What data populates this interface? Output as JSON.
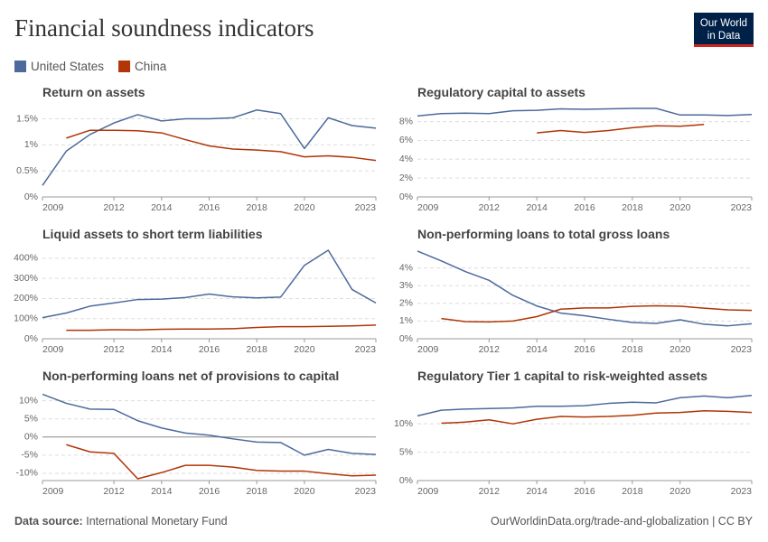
{
  "header": {
    "title": "Financial soundness indicators"
  },
  "logo": {
    "lines": [
      "Our World",
      "in Data"
    ]
  },
  "footer": {
    "source_label": "Data source:",
    "source": "International Monetary Fund",
    "credit": "OurWorldinData.org/trade-and-globalization | CC BY"
  },
  "chart_data": [
    {
      "type": "line",
      "title": "Return on assets",
      "x": [
        2009,
        2010,
        2011,
        2012,
        2013,
        2014,
        2015,
        2016,
        2017,
        2018,
        2019,
        2020,
        2021,
        2022,
        2023
      ],
      "xlim": [
        2009,
        2023
      ],
      "xticks": [
        2009,
        2012,
        2014,
        2016,
        2018,
        2020,
        2023
      ],
      "ylim": [
        0,
        1.7
      ],
      "yticks": [
        {
          "value": 0,
          "label": "0%"
        },
        {
          "value": 0.5,
          "label": "0.5%"
        },
        {
          "value": 1,
          "label": "1%"
        },
        {
          "value": 1.5,
          "label": "1.5%"
        }
      ],
      "grid": true,
      "series": [
        {
          "name": "United States",
          "color": "#4c6a9c",
          "values": [
            0.22,
            0.88,
            1.2,
            1.42,
            1.58,
            1.46,
            1.5,
            1.5,
            1.52,
            1.67,
            1.6,
            0.93,
            1.52,
            1.37,
            1.32
          ]
        },
        {
          "name": "China",
          "color": "#b13507",
          "values": [
            null,
            1.13,
            1.28,
            1.28,
            1.27,
            1.23,
            1.1,
            0.98,
            0.92,
            0.9,
            0.87,
            0.77,
            0.79,
            0.76,
            0.7
          ]
        }
      ]
    },
    {
      "type": "line",
      "title": "Regulatory capital to assets",
      "x": [
        2009,
        2010,
        2011,
        2012,
        2013,
        2014,
        2015,
        2016,
        2017,
        2018,
        2019,
        2020,
        2021,
        2022,
        2023
      ],
      "xlim": [
        2009,
        2023
      ],
      "xticks": [
        2009,
        2012,
        2014,
        2016,
        2018,
        2020,
        2023
      ],
      "ylim": [
        0,
        9.4
      ],
      "yticks": [
        {
          "value": 0,
          "label": "0%"
        },
        {
          "value": 2,
          "label": "2%"
        },
        {
          "value": 4,
          "label": "4%"
        },
        {
          "value": 6,
          "label": "6%"
        },
        {
          "value": 8,
          "label": "8%"
        }
      ],
      "grid": true,
      "series": [
        {
          "name": "United States",
          "color": "#4c6a9c",
          "values": [
            8.6,
            8.85,
            8.9,
            8.85,
            9.15,
            9.2,
            9.35,
            9.3,
            9.35,
            9.4,
            9.4,
            8.7,
            8.7,
            8.65,
            8.75
          ]
        },
        {
          "name": "China",
          "color": "#b13507",
          "values": [
            null,
            null,
            null,
            null,
            null,
            6.8,
            7.05,
            6.85,
            7.05,
            7.35,
            7.55,
            7.5,
            7.7,
            null,
            null
          ]
        }
      ]
    },
    {
      "type": "line",
      "title": "Liquid assets to short term liabilities",
      "x": [
        2009,
        2010,
        2011,
        2012,
        2013,
        2014,
        2015,
        2016,
        2017,
        2018,
        2019,
        2020,
        2021,
        2022,
        2023
      ],
      "xlim": [
        2009,
        2023
      ],
      "xticks": [
        2009,
        2012,
        2014,
        2016,
        2018,
        2020,
        2023
      ],
      "ylim": [
        0,
        440
      ],
      "yticks": [
        {
          "value": 0,
          "label": "0%"
        },
        {
          "value": 100,
          "label": "100%"
        },
        {
          "value": 200,
          "label": "200%"
        },
        {
          "value": 300,
          "label": "300%"
        },
        {
          "value": 400,
          "label": "400%"
        }
      ],
      "grid": true,
      "series": [
        {
          "name": "United States",
          "color": "#4c6a9c",
          "values": [
            105,
            128,
            162,
            178,
            195,
            197,
            205,
            222,
            208,
            203,
            207,
            365,
            440,
            245,
            178
          ]
        },
        {
          "name": "China",
          "color": "#b13507",
          "values": [
            null,
            42,
            42,
            45,
            44,
            47,
            48,
            48,
            50,
            56,
            60,
            60,
            62,
            64,
            68
          ]
        }
      ]
    },
    {
      "type": "line",
      "title": "Non-performing loans to total gross loans",
      "x": [
        2009,
        2010,
        2011,
        2012,
        2013,
        2014,
        2015,
        2016,
        2017,
        2018,
        2019,
        2020,
        2021,
        2022,
        2023
      ],
      "xlim": [
        2009,
        2023
      ],
      "xticks": [
        2009,
        2012,
        2014,
        2016,
        2018,
        2020,
        2023
      ],
      "ylim": [
        0,
        5
      ],
      "yticks": [
        {
          "value": 0,
          "label": "0%"
        },
        {
          "value": 1,
          "label": "1%"
        },
        {
          "value": 2,
          "label": "2%"
        },
        {
          "value": 3,
          "label": "3%"
        },
        {
          "value": 4,
          "label": "4%"
        }
      ],
      "grid": true,
      "series": [
        {
          "name": "United States",
          "color": "#4c6a9c",
          "values": [
            4.95,
            4.4,
            3.8,
            3.3,
            2.45,
            1.85,
            1.45,
            1.3,
            1.1,
            0.92,
            0.87,
            1.07,
            0.82,
            0.73,
            0.85
          ]
        },
        {
          "name": "China",
          "color": "#b13507",
          "values": [
            null,
            1.14,
            0.97,
            0.95,
            1.0,
            1.25,
            1.67,
            1.74,
            1.74,
            1.83,
            1.86,
            1.84,
            1.73,
            1.63,
            1.6
          ]
        }
      ]
    },
    {
      "type": "line",
      "title": "Non-performing loans net of provisions to capital",
      "x": [
        2009,
        2010,
        2011,
        2012,
        2013,
        2014,
        2015,
        2016,
        2017,
        2018,
        2019,
        2020,
        2021,
        2022,
        2023
      ],
      "xlim": [
        2009,
        2023
      ],
      "xticks": [
        2009,
        2012,
        2014,
        2016,
        2018,
        2020,
        2023
      ],
      "ylim": [
        -12,
        12.4
      ],
      "yticks": [
        {
          "value": -10,
          "label": "-10%"
        },
        {
          "value": -5,
          "label": "-5%"
        },
        {
          "value": 0,
          "label": "0%"
        },
        {
          "value": 5,
          "label": "5%"
        },
        {
          "value": 10,
          "label": "10%"
        }
      ],
      "grid": true,
      "series": [
        {
          "name": "United States",
          "color": "#4c6a9c",
          "values": [
            11.8,
            9.3,
            7.7,
            7.6,
            4.5,
            2.5,
            1.1,
            0.5,
            -0.5,
            -1.4,
            -1.5,
            -5,
            -3.4,
            -4.5,
            -4.8
          ]
        },
        {
          "name": "China",
          "color": "#b13507",
          "values": [
            null,
            -2.1,
            -4.1,
            -4.5,
            -11.5,
            -9.8,
            -7.8,
            -7.8,
            -8.3,
            -9.2,
            -9.4,
            -9.4,
            -10.1,
            -10.7,
            -10.5
          ]
        }
      ]
    },
    {
      "type": "line",
      "title": "Regulatory Tier 1 capital to risk-weighted assets",
      "x": [
        2009,
        2010,
        2011,
        2012,
        2013,
        2014,
        2015,
        2016,
        2017,
        2018,
        2019,
        2020,
        2021,
        2022,
        2023
      ],
      "xlim": [
        2009,
        2023
      ],
      "xticks": [
        2009,
        2012,
        2014,
        2016,
        2018,
        2020,
        2023
      ],
      "ylim": [
        0,
        15.6
      ],
      "yticks": [
        {
          "value": 0,
          "label": "0%"
        },
        {
          "value": 5,
          "label": "5%"
        },
        {
          "value": 10,
          "label": "10%"
        }
      ],
      "grid": true,
      "series": [
        {
          "name": "United States",
          "color": "#4c6a9c",
          "values": [
            11.4,
            12.4,
            12.6,
            12.7,
            12.8,
            13.1,
            13.1,
            13.2,
            13.6,
            13.8,
            13.7,
            14.6,
            14.9,
            14.6,
            15.0
          ]
        },
        {
          "name": "China",
          "color": "#b13507",
          "values": [
            null,
            10.1,
            10.3,
            10.7,
            10.0,
            10.8,
            11.3,
            11.2,
            11.3,
            11.5,
            11.9,
            12.0,
            12.3,
            12.2,
            12.0
          ]
        }
      ]
    }
  ]
}
